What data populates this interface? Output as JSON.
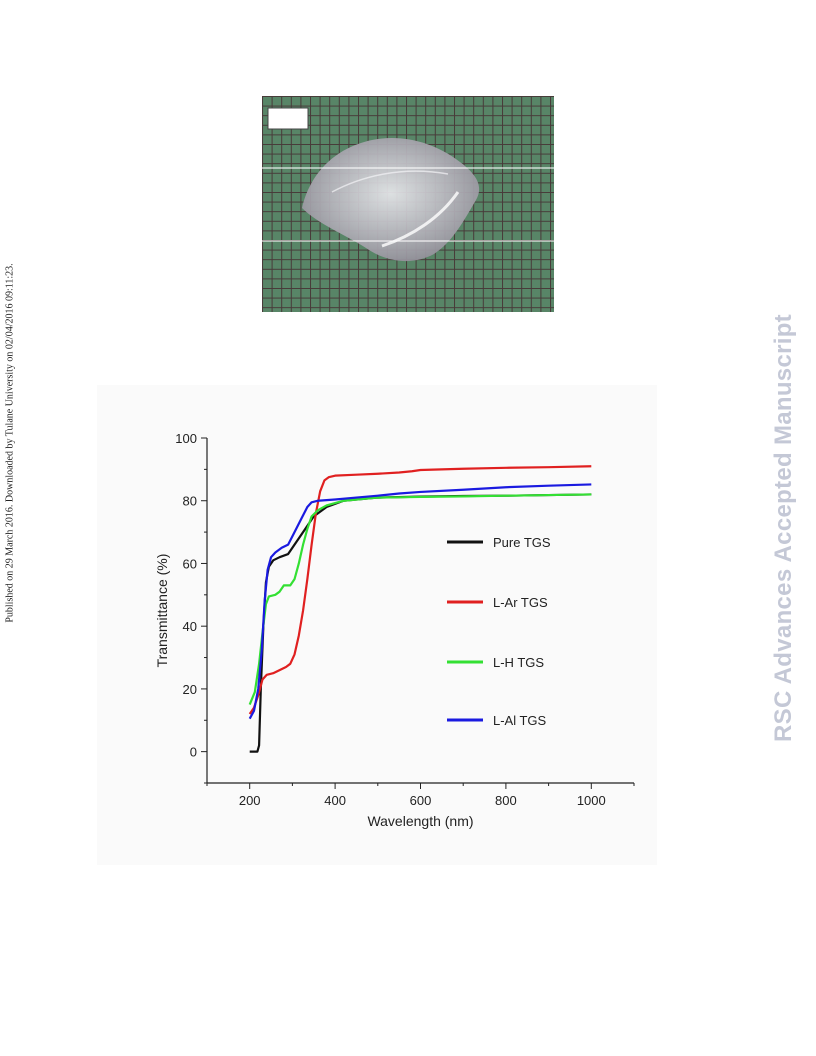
{
  "side_note": "Published on 29 March 2016. Downloaded by Tulane University on 02/04/2016 09:11:23.",
  "watermark": "RSC Advances Accepted Manuscript",
  "colors": {
    "pure_tgs": "#111111",
    "l_ar_tgs": "#e02020",
    "l_h_tgs": "#33e033",
    "l_al_tgs": "#1a1ae0",
    "photo_background": "#4a7f5d",
    "grid_lines": "#3a2f2c"
  },
  "photo": {
    "subject": "crystal-on-grid-paper"
  },
  "chart_data": {
    "type": "line",
    "xlabel": "Wavelength (nm)",
    "ylabel": "Transmittance (%)",
    "xlim": [
      100,
      1100
    ],
    "ylim": [
      -10,
      100
    ],
    "xticks": [
      200,
      400,
      600,
      800,
      1000
    ],
    "yticks": [
      0,
      20,
      40,
      60,
      80,
      100
    ],
    "grid": false,
    "legend_position": "right-middle",
    "series": [
      {
        "name": "Pure TGS",
        "color": "#111111",
        "points": [
          [
            200,
            0
          ],
          [
            210,
            0
          ],
          [
            218,
            0
          ],
          [
            222,
            2
          ],
          [
            226,
            20
          ],
          [
            232,
            40
          ],
          [
            238,
            54
          ],
          [
            245,
            59
          ],
          [
            255,
            61
          ],
          [
            270,
            62
          ],
          [
            290,
            63
          ],
          [
            310,
            67
          ],
          [
            330,
            71
          ],
          [
            350,
            75
          ],
          [
            380,
            78
          ],
          [
            420,
            80
          ],
          [
            500,
            81
          ],
          [
            600,
            81.3
          ],
          [
            700,
            81.5
          ],
          [
            800,
            81.6
          ],
          [
            900,
            81.8
          ],
          [
            1000,
            82
          ]
        ]
      },
      {
        "name": "L-Ar TGS",
        "color": "#e02020",
        "points": [
          [
            200,
            12
          ],
          [
            210,
            14
          ],
          [
            220,
            18
          ],
          [
            230,
            23
          ],
          [
            240,
            24.5
          ],
          [
            255,
            25
          ],
          [
            270,
            26
          ],
          [
            285,
            27
          ],
          [
            295,
            28
          ],
          [
            305,
            31
          ],
          [
            315,
            37
          ],
          [
            325,
            45
          ],
          [
            335,
            55
          ],
          [
            345,
            66
          ],
          [
            355,
            76
          ],
          [
            365,
            83
          ],
          [
            375,
            86.5
          ],
          [
            385,
            87.5
          ],
          [
            400,
            88
          ],
          [
            450,
            88.3
          ],
          [
            500,
            88.6
          ],
          [
            550,
            89
          ],
          [
            580,
            89.4
          ],
          [
            600,
            89.8
          ],
          [
            700,
            90.2
          ],
          [
            800,
            90.5
          ],
          [
            900,
            90.7
          ],
          [
            1000,
            91
          ]
        ]
      },
      {
        "name": "L-H TGS",
        "color": "#33e033",
        "points": [
          [
            200,
            15
          ],
          [
            212,
            19
          ],
          [
            222,
            28
          ],
          [
            230,
            38
          ],
          [
            238,
            47
          ],
          [
            245,
            49.5
          ],
          [
            260,
            50
          ],
          [
            270,
            51
          ],
          [
            280,
            53
          ],
          [
            295,
            53
          ],
          [
            305,
            55
          ],
          [
            315,
            60
          ],
          [
            325,
            66
          ],
          [
            335,
            71
          ],
          [
            345,
            75
          ],
          [
            360,
            77
          ],
          [
            380,
            78.5
          ],
          [
            420,
            80
          ],
          [
            500,
            81
          ],
          [
            600,
            81.2
          ],
          [
            700,
            81.4
          ],
          [
            800,
            81.6
          ],
          [
            900,
            81.8
          ],
          [
            1000,
            82
          ]
        ]
      },
      {
        "name": "L-Al TGS",
        "color": "#1a1ae0",
        "points": [
          [
            200,
            10.5
          ],
          [
            210,
            13
          ],
          [
            220,
            20
          ],
          [
            228,
            32
          ],
          [
            235,
            48
          ],
          [
            242,
            58
          ],
          [
            250,
            62
          ],
          [
            260,
            63.5
          ],
          [
            275,
            65
          ],
          [
            290,
            66
          ],
          [
            305,
            70
          ],
          [
            320,
            74
          ],
          [
            335,
            78
          ],
          [
            345,
            79.5
          ],
          [
            360,
            80
          ],
          [
            400,
            80.4
          ],
          [
            450,
            81
          ],
          [
            500,
            81.6
          ],
          [
            550,
            82.3
          ],
          [
            600,
            82.8
          ],
          [
            700,
            83.5
          ],
          [
            800,
            84.3
          ],
          [
            900,
            84.8
          ],
          [
            1000,
            85.2
          ]
        ]
      }
    ]
  }
}
